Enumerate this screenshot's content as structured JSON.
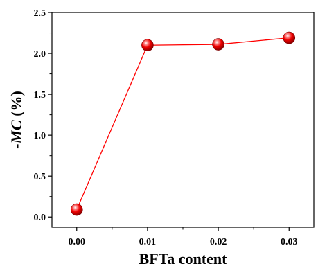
{
  "chart_data": {
    "type": "line",
    "x": [
      0.0,
      0.01,
      0.02,
      0.03
    ],
    "series": [
      {
        "values": [
          0.09,
          2.1,
          2.11,
          2.19
        ]
      }
    ],
    "x_tick_labels": [
      "0.00",
      "0.01",
      "0.02",
      "0.03"
    ],
    "y_tick_labels": [
      "0.0",
      "0.5",
      "1.0",
      "1.5",
      "2.0",
      "2.5"
    ],
    "xlabel": "BFTa content",
    "ylabel_prefix": "-",
    "ylabel_italic": "MC",
    "ylabel_suffix": " (%)",
    "xlim": [
      -0.0035,
      0.0335
    ],
    "ylim": [
      -0.125,
      2.5
    ],
    "grid": false,
    "line_color": "#ff0000",
    "marker_color": "#e00000"
  }
}
